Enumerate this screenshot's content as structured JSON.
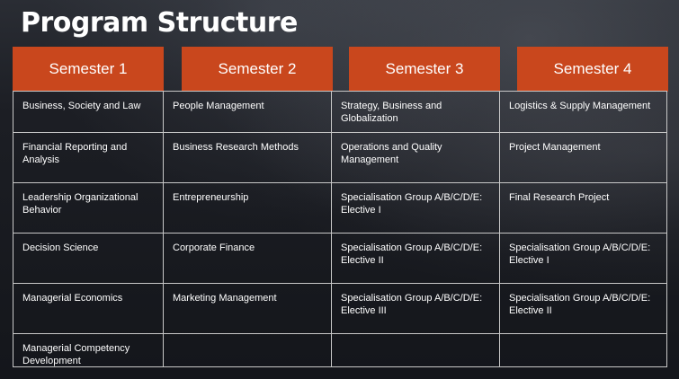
{
  "title": "Program Structure",
  "semesters": [
    "Semester 1",
    "Semester 2",
    "Semester 3",
    "Semester 4"
  ],
  "rows": [
    [
      "Business, Society and Law",
      "People Management",
      "Strategy, Business and Globalization",
      "Logistics & Supply Management"
    ],
    [
      "Financial Reporting and Analysis",
      "Business Research Methods",
      "Operations and Quality Management",
      "Project Management"
    ],
    [
      "Leadership Organizational Behavior",
      "Entrepreneurship",
      "Specialisation Group A/B/C/D/E: Elective I",
      "Final Research Project"
    ],
    [
      "Decision Science",
      "Corporate Finance",
      "Specialisation Group A/B/C/D/E: Elective II",
      "Specialisation Group A/B/C/D/E: Elective I"
    ],
    [
      "Managerial Economics",
      "Marketing Management",
      "Specialisation Group A/B/C/D/E: Elective III",
      "Specialisation Group A/B/C/D/E: Elective II"
    ],
    [
      "Managerial Competency Development",
      "",
      "",
      ""
    ]
  ],
  "colors": {
    "header_bg": "#c9471d",
    "page_bg": "#15171d",
    "grid_line": "#c8c8c8"
  }
}
